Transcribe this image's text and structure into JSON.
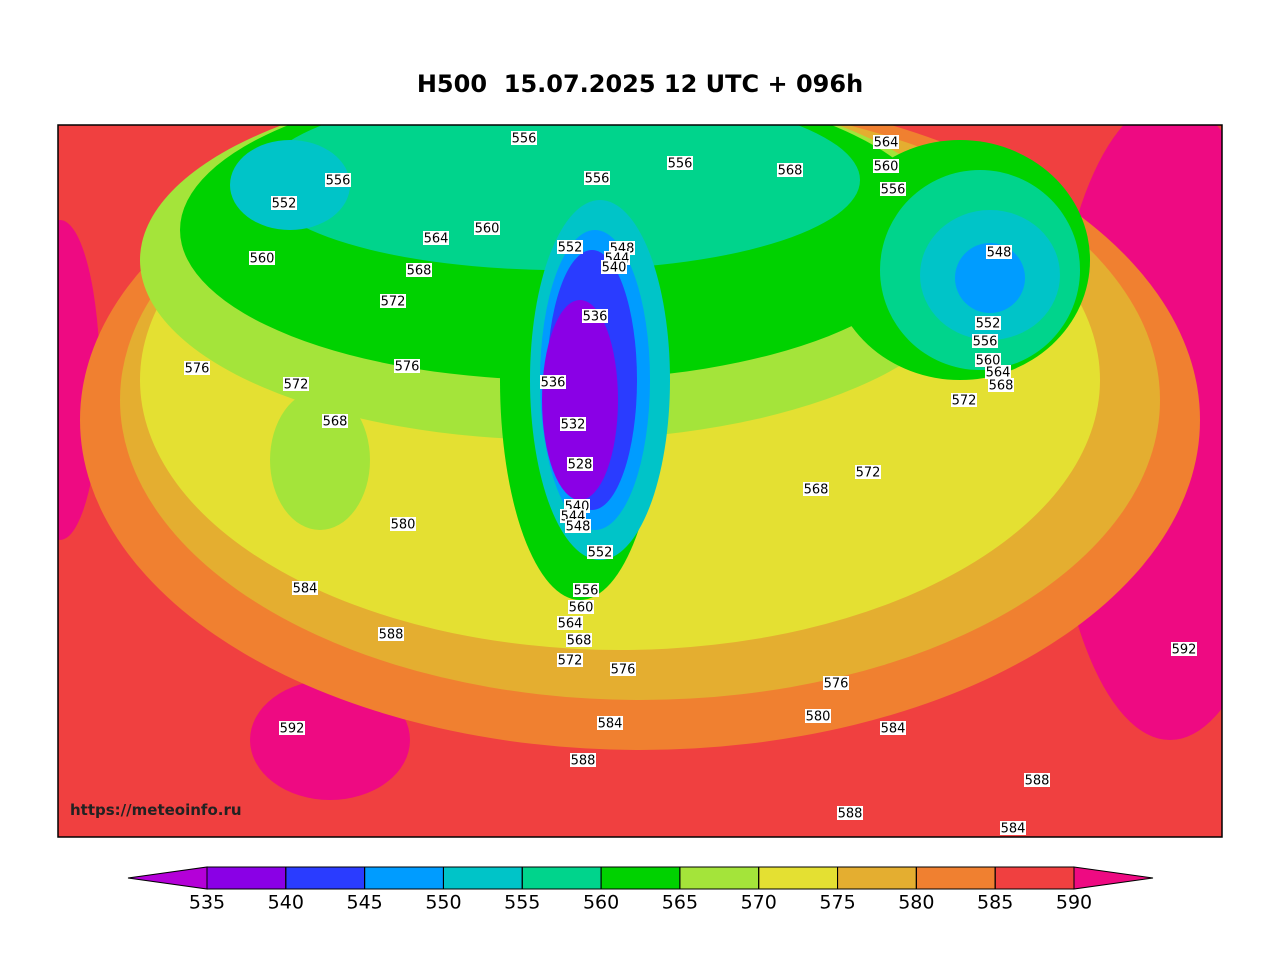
{
  "title": "H500  15.07.2025 12 UTC + 096h",
  "watermark": "https://meteoinfo.ru",
  "colorbar": {
    "ticks": [
      535,
      540,
      545,
      550,
      555,
      560,
      565,
      570,
      575,
      580,
      585,
      590
    ],
    "colors": [
      "#b400d8",
      "#8a00e6",
      "#2a3cff",
      "#009cff",
      "#00c4c8",
      "#00d48c",
      "#00d200",
      "#a4e43a",
      "#e4e032",
      "#e4ae30",
      "#f08030",
      "#f04040",
      "#ee0a82"
    ]
  },
  "contour_labels": [
    556,
    556,
    552,
    560,
    564,
    560,
    568,
    572,
    576,
    572,
    576,
    568,
    580,
    584,
    588,
    592,
    556,
    552,
    548,
    544,
    540,
    536,
    536,
    532,
    528,
    540,
    544,
    548,
    552,
    556,
    560,
    564,
    568,
    572,
    576,
    584,
    588,
    568,
    564,
    560,
    556,
    548,
    552,
    556,
    560,
    564,
    568,
    572,
    572,
    568,
    576,
    580,
    584,
    588,
    592,
    588,
    584,
    556
  ]
}
